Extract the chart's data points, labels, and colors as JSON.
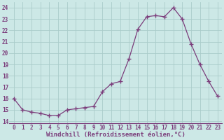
{
  "x": [
    0,
    1,
    2,
    3,
    4,
    5,
    6,
    7,
    8,
    9,
    10,
    11,
    12,
    13,
    14,
    15,
    16,
    17,
    18,
    19,
    20,
    21,
    22,
    23
  ],
  "y": [
    16.0,
    15.0,
    14.8,
    14.7,
    14.5,
    14.5,
    15.0,
    15.1,
    15.2,
    15.3,
    16.6,
    17.3,
    17.5,
    19.5,
    22.1,
    23.2,
    23.3,
    23.2,
    24.0,
    23.0,
    20.8,
    19.0,
    17.5,
    16.2
  ],
  "line_color": "#7b3d7b",
  "marker": "+",
  "markersize": 4,
  "linewidth": 0.9,
  "background_color": "#cce8e6",
  "grid_color": "#aaccca",
  "yticks": [
    14,
    15,
    16,
    17,
    18,
    19,
    20,
    21,
    22,
    23,
    24
  ],
  "xlabel": "Windchill (Refroidissement éolien,°C)",
  "ylim": [
    13.8,
    24.5
  ],
  "xlim": [
    -0.5,
    23.5
  ],
  "tick_color": "#7b3d7b",
  "label_color": "#7b3d7b",
  "tick_fontsize": 5.5,
  "xlabel_fontsize": 6.5
}
